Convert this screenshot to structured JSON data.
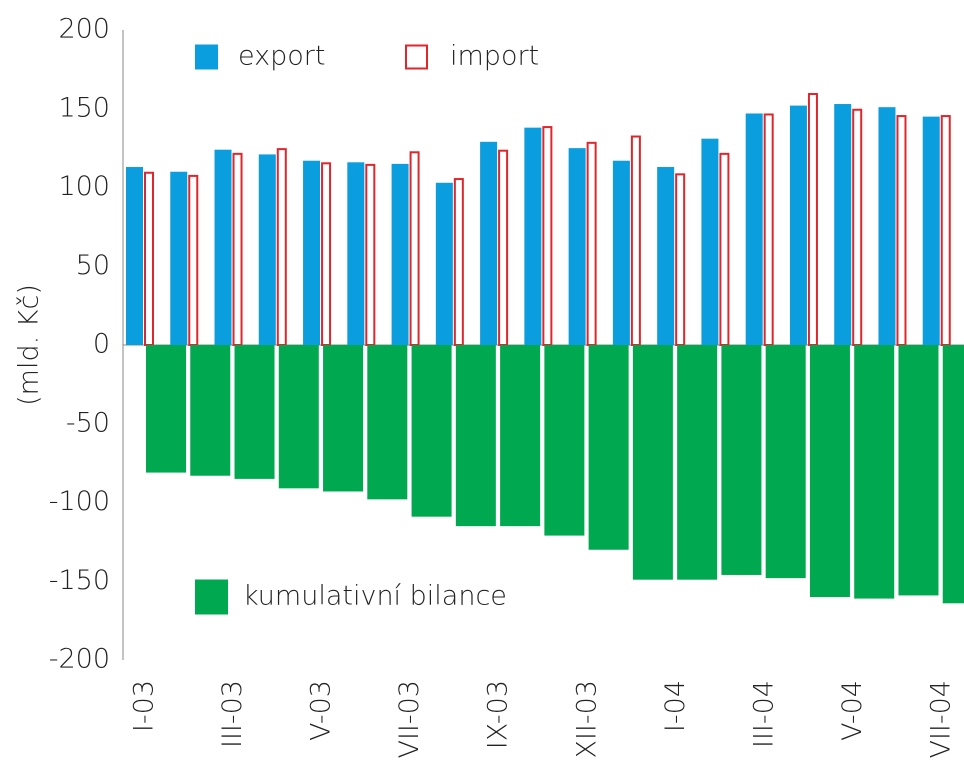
{
  "chart_data": {
    "type": "bar",
    "y_label": "(mld. Kč)",
    "categories": [
      "I-03",
      null,
      "III-03",
      null,
      "V-03",
      null,
      "VII-03",
      null,
      "IX-03",
      null,
      "XII-03",
      null,
      "I-04",
      null,
      "III-04",
      null,
      "V-04",
      null,
      "VII-04"
    ],
    "series": [
      {
        "name": "export",
        "color": "#0b9ede",
        "style": "filled",
        "values": [
          113,
          110,
          124,
          121,
          117,
          116,
          115,
          103,
          129,
          138,
          125,
          117,
          113,
          131,
          147,
          152,
          153,
          151,
          145
        ]
      },
      {
        "name": "import",
        "color": "#e0262b",
        "style": "outline",
        "values": [
          110,
          108,
          122,
          125,
          116,
          115,
          123,
          106,
          124,
          139,
          129,
          133,
          109,
          122,
          147,
          160,
          150,
          146,
          146
        ]
      },
      {
        "name": "kumulativní bilance",
        "color": "#00a84f",
        "style": "filled",
        "values": [
          -81,
          -83,
          -85,
          -91,
          -93,
          -98,
          -109,
          -115,
          -115,
          -121,
          -130,
          -149,
          -149,
          -146,
          -148,
          -160,
          -161,
          -159,
          -164
        ]
      }
    ],
    "ylim": [
      -200,
      200
    ],
    "yticks": [
      -200,
      -150,
      -100,
      -50,
      0,
      50,
      100,
      150,
      200
    ],
    "grid": false
  }
}
